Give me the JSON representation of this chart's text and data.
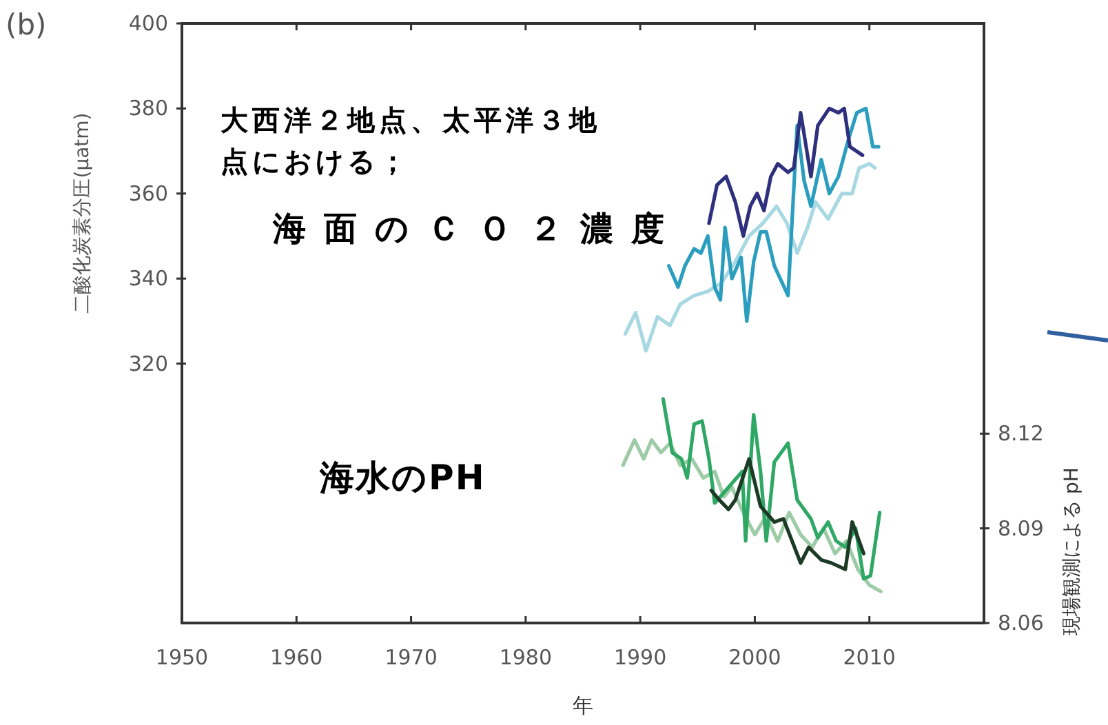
{
  "chart_data": {
    "type": "line",
    "xlabel": "年",
    "ylabel": "二酸化炭素分圧(µatm)",
    "y2label": "現場観測による pH",
    "annotations": [
      "(b)",
      "大西洋２地点、太平洋３地点における；",
      "海面のＣＯ２濃度",
      "海水のPH"
    ],
    "xlim": [
      1950,
      2020
    ],
    "xticks": [
      1950,
      1960,
      1970,
      1980,
      1990,
      2000,
      2010
    ],
    "ylim": [
      259,
      400
    ],
    "yticks": [
      320,
      340,
      360,
      380,
      400
    ],
    "y2lim": [
      8.06,
      8.25
    ],
    "y2ticks": [
      8.06,
      8.09,
      8.12
    ],
    "grid": false,
    "marker": "none",
    "line_style": "solid",
    "series": [
      {
        "color": "#a8d8e2",
        "x": [
          1988.7,
          1989.6,
          1990.5,
          1991.5,
          1992.6,
          1993.5,
          1994.7,
          1995.9,
          1997.1,
          1998.3,
          1999.5,
          2000.7,
          2001.9,
          2002.8,
          2003.7,
          2004.6,
          2005.3,
          2006.4,
          2007.6,
          2008.5,
          2009.1,
          2010,
          2010.5
        ],
        "values": [
          327,
          332,
          323,
          331,
          329,
          334,
          336,
          337,
          339,
          344,
          350,
          353,
          357,
          353,
          346,
          352,
          358,
          354,
          360,
          360,
          366,
          367,
          366
        ]
      },
      {
        "color": "#2b9ec0",
        "x": [
          1992.5,
          1993.3,
          1993.9,
          1994.7,
          1995.3,
          1995.9,
          1996.5,
          1997,
          1997.4,
          1998,
          1998.8,
          1999.3,
          1999.9,
          2000.5,
          2001,
          2001.7,
          2002.9,
          2003.7,
          2004.3,
          2004.9,
          2005.8,
          2006.5,
          2007.3,
          2008.2,
          2008.9,
          2009.7,
          2010.3,
          2010.8
        ],
        "values": [
          343,
          338,
          343,
          347,
          346,
          350,
          338,
          335,
          352,
          340,
          345,
          330,
          344,
          351,
          351,
          343,
          336,
          376,
          363,
          357,
          368,
          360,
          364,
          373,
          379,
          380,
          371,
          371
        ]
      },
      {
        "color": "#2e2f7d",
        "x": [
          1996,
          1996.7,
          1997.5,
          1998.3,
          1999,
          1999.6,
          2000.2,
          2000.8,
          2001.4,
          2002,
          2002.9,
          2003.4,
          2004,
          2004.9,
          2005.5,
          2006.5,
          2007.3,
          2007.8,
          2008.3,
          2009.4
        ],
        "values": [
          353,
          362,
          364,
          358,
          350,
          357,
          360,
          356,
          364,
          367,
          365,
          366,
          379,
          364,
          376,
          380,
          379,
          380,
          371,
          369
        ]
      },
      {
        "axis": "y2",
        "color": "#9ccba6",
        "x": [
          1988.5,
          1989.5,
          1990.3,
          1991,
          1991.8,
          1992.6,
          1993.5,
          1994.5,
          1995.5,
          1996.5,
          1997.3,
          1998,
          1999,
          2000,
          2001,
          2002,
          2003,
          2004,
          2005,
          2006,
          2007,
          2008,
          2009,
          2010,
          2011
        ],
        "values": [
          8.11,
          8.118,
          8.112,
          8.118,
          8.114,
          8.117,
          8.11,
          8.112,
          8.106,
          8.108,
          8.1,
          8.103,
          8.095,
          8.088,
          8.094,
          8.086,
          8.095,
          8.088,
          8.084,
          8.09,
          8.082,
          8.086,
          8.077,
          8.072,
          8.07
        ]
      },
      {
        "axis": "y2",
        "color": "#2fa865",
        "x": [
          1992,
          1992.8,
          1993.6,
          1994.1,
          1994.7,
          1995.4,
          1996,
          1996.5,
          1998.9,
          1999.2,
          1999.9,
          2000.5,
          2001,
          2001.7,
          2002.9,
          2003.7,
          2004.9,
          2005.5,
          2006.4,
          2007.1,
          2007.9,
          2008.8,
          2009.5,
          2010.1,
          2010.9
        ],
        "values": [
          8.131,
          8.114,
          8.112,
          8.106,
          8.123,
          8.124,
          8.112,
          8.098,
          8.108,
          8.086,
          8.126,
          8.108,
          8.086,
          8.111,
          8.117,
          8.099,
          8.093,
          8.087,
          8.092,
          8.086,
          8.084,
          8.09,
          8.074,
          8.075,
          8.095
        ]
      },
      {
        "axis": "y2",
        "color": "#1d3a26",
        "x": [
          1996.2,
          1996.9,
          1997.7,
          1998.3,
          1999.5,
          2000.5,
          2001.7,
          2002.5,
          2004,
          2004.7,
          2005.8,
          2006.7,
          2007.9,
          2008.5,
          2009.5
        ],
        "values": [
          8.102,
          8.099,
          8.096,
          8.099,
          8.112,
          8.097,
          8.092,
          8.093,
          8.079,
          8.084,
          8.08,
          8.079,
          8.077,
          8.092,
          8.082
        ]
      }
    ]
  }
}
